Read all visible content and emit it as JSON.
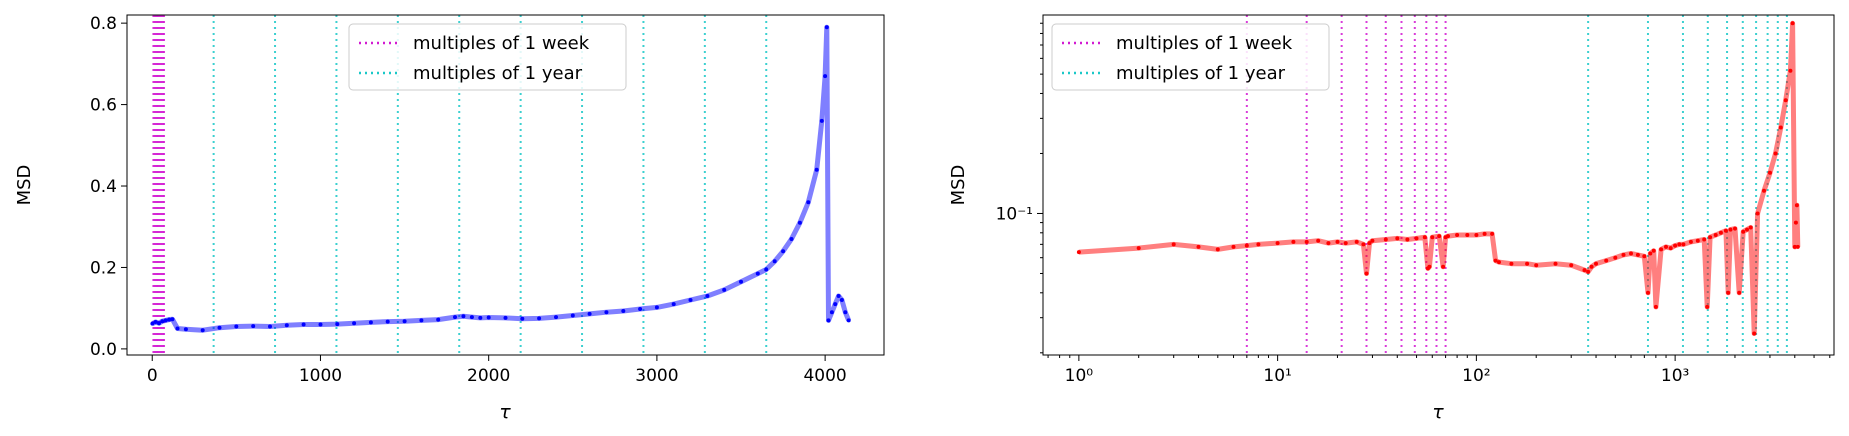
{
  "colors": {
    "week": "#d21ad2",
    "year": "#1ac8c8",
    "left_series": "#0000ff",
    "right_series": "#ff0000",
    "axis": "#000000"
  },
  "chart_data": [
    {
      "type": "line",
      "title": "",
      "xlabel": "τ",
      "ylabel": "MSD",
      "xlim": [
        -150,
        4350
      ],
      "ylim": [
        -0.015,
        0.82
      ],
      "xscale": "linear",
      "yscale": "linear",
      "grid": false,
      "legend_position": "top-center",
      "xticks": [
        0,
        1000,
        2000,
        3000,
        4000
      ],
      "xtick_labels": [
        "0",
        "1000",
        "2000",
        "3000",
        "4000"
      ],
      "yticks": [
        0.0,
        0.2,
        0.4,
        0.6,
        0.8
      ],
      "ytick_labels": [
        "0.0",
        "0.2",
        "0.4",
        "0.6",
        "0.8"
      ],
      "vlines": [
        {
          "name": "multiples of 1 week",
          "color_key": "week",
          "x": [
            7,
            14,
            21,
            28,
            35,
            42,
            49,
            56,
            63,
            70
          ]
        },
        {
          "name": "multiples of 1 year",
          "color_key": "year",
          "x": [
            365,
            730,
            1095,
            1460,
            1825,
            2190,
            2555,
            2920,
            3285,
            3650
          ]
        }
      ],
      "series": [
        {
          "color_key": "left_series",
          "x": [
            1,
            20,
            40,
            60,
            80,
            100,
            120,
            150,
            200,
            300,
            400,
            500,
            600,
            700,
            800,
            900,
            1000,
            1100,
            1200,
            1300,
            1400,
            1500,
            1600,
            1700,
            1800,
            1850,
            1900,
            1950,
            2000,
            2100,
            2200,
            2300,
            2400,
            2500,
            2600,
            2700,
            2800,
            2900,
            3000,
            3100,
            3200,
            3300,
            3400,
            3500,
            3600,
            3650,
            3700,
            3750,
            3800,
            3850,
            3900,
            3950,
            3980,
            4000,
            4010,
            4020,
            4040,
            4060,
            4080,
            4100,
            4120,
            4140
          ],
          "y": [
            0.062,
            0.066,
            0.063,
            0.068,
            0.07,
            0.072,
            0.073,
            0.05,
            0.048,
            0.046,
            0.052,
            0.055,
            0.056,
            0.055,
            0.058,
            0.06,
            0.06,
            0.061,
            0.063,
            0.065,
            0.067,
            0.068,
            0.07,
            0.072,
            0.078,
            0.08,
            0.078,
            0.076,
            0.077,
            0.076,
            0.074,
            0.075,
            0.078,
            0.082,
            0.086,
            0.09,
            0.093,
            0.098,
            0.102,
            0.11,
            0.12,
            0.13,
            0.145,
            0.165,
            0.185,
            0.195,
            0.215,
            0.24,
            0.27,
            0.31,
            0.36,
            0.44,
            0.56,
            0.67,
            0.79,
            0.07,
            0.09,
            0.11,
            0.13,
            0.12,
            0.09,
            0.07
          ]
        }
      ]
    },
    {
      "type": "line",
      "title": "",
      "xlabel": "τ",
      "ylabel": "MSD",
      "xlim": [
        0.66,
        6300
      ],
      "ylim": [
        0.0195,
        0.99
      ],
      "xscale": "log",
      "yscale": "log",
      "grid": false,
      "legend_position": "top-left",
      "xticks": [
        1,
        10,
        100,
        1000
      ],
      "xtick_labels": [
        "10⁰",
        "10¹",
        "10²",
        "10³"
      ],
      "yticks": [
        0.1
      ],
      "ytick_labels": [
        "10⁻¹"
      ],
      "vlines": [
        {
          "name": "multiples of 1 week",
          "color_key": "week",
          "x": [
            7,
            14,
            21,
            28,
            35,
            42,
            49,
            56,
            63,
            70
          ]
        },
        {
          "name": "multiples of 1 year",
          "color_key": "year",
          "x": [
            365,
            730,
            1095,
            1460,
            1825,
            2190,
            2555,
            2920,
            3285,
            3650
          ]
        }
      ],
      "series": [
        {
          "color_key": "right_series",
          "x": [
            1,
            2,
            3,
            4,
            5,
            6,
            7,
            8,
            10,
            12,
            14,
            16,
            18,
            20,
            22,
            25,
            27,
            28,
            29,
            30,
            35,
            40,
            45,
            50,
            55,
            57,
            58,
            60,
            65,
            68,
            70,
            72,
            80,
            90,
            100,
            110,
            120,
            125,
            130,
            150,
            180,
            200,
            250,
            300,
            350,
            365,
            380,
            400,
            450,
            500,
            550,
            600,
            650,
            700,
            730,
            750,
            780,
            800,
            850,
            900,
            950,
            1000,
            1050,
            1100,
            1200,
            1300,
            1400,
            1450,
            1500,
            1600,
            1700,
            1800,
            1850,
            1900,
            2000,
            2100,
            2200,
            2300,
            2400,
            2500,
            2600,
            2800,
            3000,
            3200,
            3400,
            3600,
            3800,
            3900,
            4000,
            4050,
            4100,
            4140
          ],
          "y": [
            0.064,
            0.067,
            0.07,
            0.068,
            0.066,
            0.068,
            0.069,
            0.07,
            0.071,
            0.072,
            0.072,
            0.073,
            0.071,
            0.072,
            0.071,
            0.072,
            0.07,
            0.05,
            0.071,
            0.073,
            0.074,
            0.075,
            0.074,
            0.075,
            0.076,
            0.053,
            0.054,
            0.076,
            0.077,
            0.054,
            0.076,
            0.077,
            0.078,
            0.078,
            0.078,
            0.079,
            0.079,
            0.058,
            0.057,
            0.056,
            0.056,
            0.055,
            0.056,
            0.055,
            0.052,
            0.051,
            0.054,
            0.056,
            0.058,
            0.06,
            0.062,
            0.063,
            0.062,
            0.061,
            0.04,
            0.063,
            0.065,
            0.034,
            0.066,
            0.068,
            0.067,
            0.069,
            0.07,
            0.07,
            0.072,
            0.073,
            0.074,
            0.034,
            0.076,
            0.078,
            0.08,
            0.082,
            0.04,
            0.083,
            0.084,
            0.04,
            0.081,
            0.083,
            0.085,
            0.025,
            0.1,
            0.13,
            0.16,
            0.2,
            0.27,
            0.37,
            0.52,
            0.9,
            0.068,
            0.09,
            0.11,
            0.068
          ]
        }
      ]
    }
  ],
  "panels": [
    {
      "ylabel": "MSD",
      "xlabel": "τ",
      "legend": [
        "multiples of 1 week",
        "multiples of 1 year"
      ]
    },
    {
      "ylabel": "MSD",
      "xlabel": "τ",
      "legend": [
        "multiples of 1 week",
        "multiples of 1 year"
      ]
    }
  ]
}
